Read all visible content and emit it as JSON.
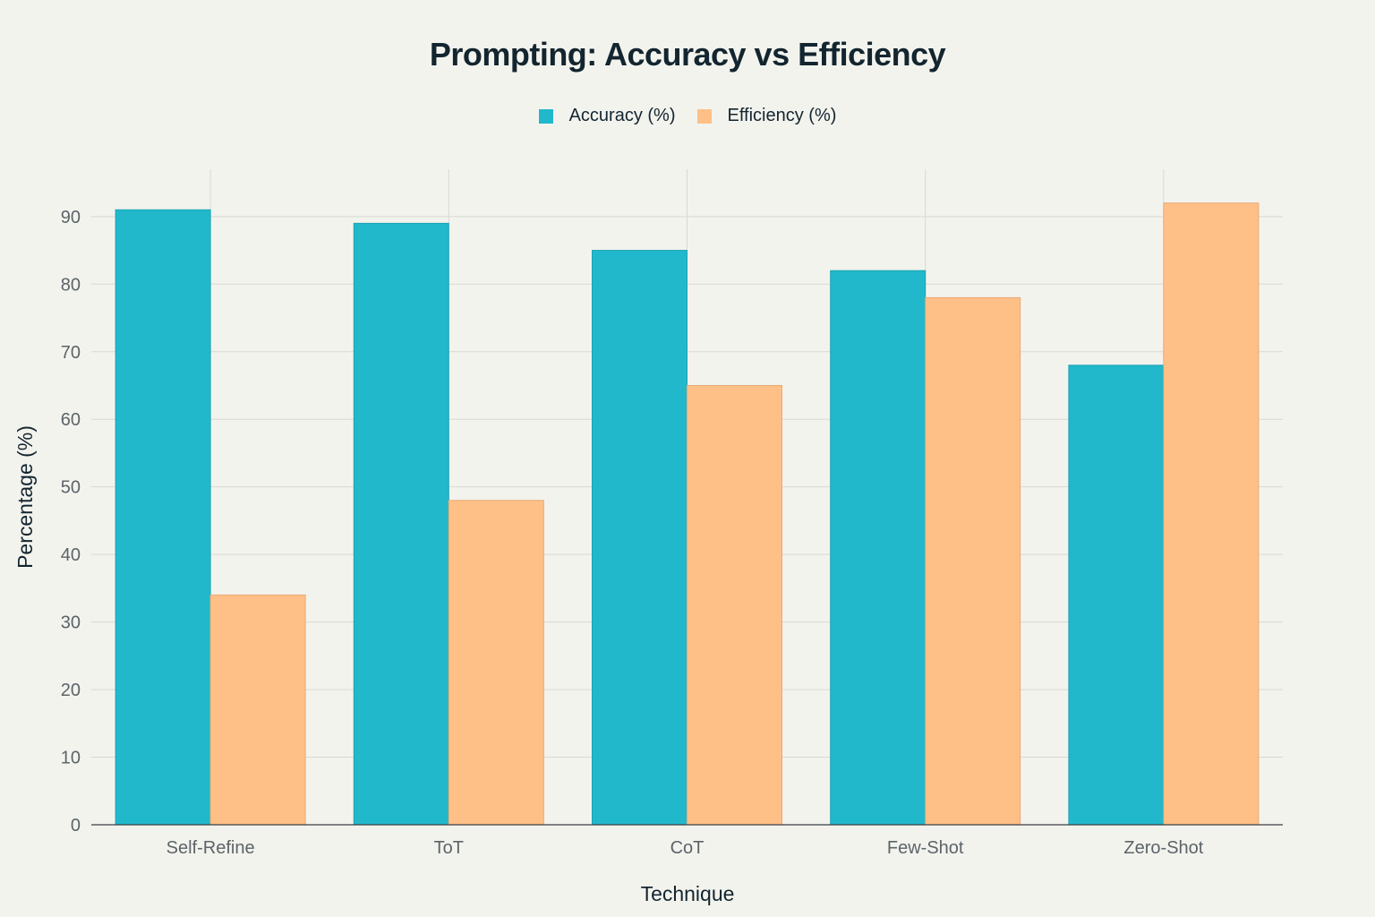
{
  "chart_data": {
    "type": "bar",
    "title": "Prompting: Accuracy vs Efficiency",
    "xlabel": "Technique",
    "ylabel": "Percentage (%)",
    "categories": [
      "Self-Refine",
      "ToT",
      "CoT",
      "Few-Shot",
      "Zero-Shot"
    ],
    "series": [
      {
        "name": "Accuracy (%)",
        "values": [
          91,
          89,
          85,
          82,
          68
        ],
        "color": "#21b8cb"
      },
      {
        "name": "Efficiency (%)",
        "values": [
          34,
          48,
          65,
          78,
          92
        ],
        "color": "#ffc087"
      }
    ],
    "y_ticks": [
      0,
      10,
      20,
      30,
      40,
      50,
      60,
      70,
      80,
      90
    ],
    "ylim": [
      0,
      97
    ],
    "grid": true,
    "legend_position": "top-center"
  }
}
